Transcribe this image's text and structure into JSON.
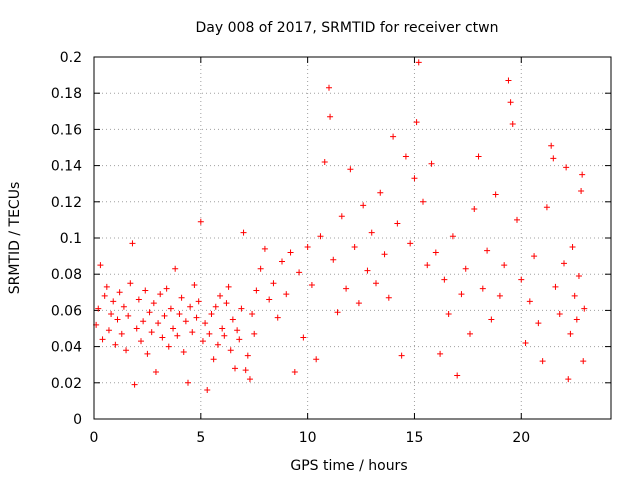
{
  "chart_data": {
    "type": "scatter",
    "title": "Day 008 of 2017, SRMTID for receiver ctwn",
    "xlabel": "GPS time / hours",
    "ylabel": "SRMTID / TECUs",
    "xlim": [
      0,
      24.2
    ],
    "ylim": [
      0,
      0.2
    ],
    "xticks": [
      0,
      5,
      10,
      15,
      20
    ],
    "yticks": [
      0,
      0.02,
      0.04,
      0.06,
      0.08,
      0.1,
      0.12,
      0.14,
      0.16,
      0.18,
      0.2
    ],
    "grid": true,
    "marker": "plus",
    "color": "#ff0000",
    "series": [
      {
        "name": "SRMTID",
        "points": [
          [
            0.1,
            0.052
          ],
          [
            0.2,
            0.061
          ],
          [
            0.3,
            0.085
          ],
          [
            0.4,
            0.044
          ],
          [
            0.5,
            0.068
          ],
          [
            0.6,
            0.073
          ],
          [
            0.7,
            0.049
          ],
          [
            0.8,
            0.058
          ],
          [
            0.9,
            0.065
          ],
          [
            1.0,
            0.041
          ],
          [
            1.1,
            0.055
          ],
          [
            1.2,
            0.07
          ],
          [
            1.3,
            0.047
          ],
          [
            1.4,
            0.062
          ],
          [
            1.5,
            0.038
          ],
          [
            1.6,
            0.057
          ],
          [
            1.7,
            0.075
          ],
          [
            1.8,
            0.097
          ],
          [
            1.9,
            0.019
          ],
          [
            2.0,
            0.05
          ],
          [
            2.1,
            0.066
          ],
          [
            2.2,
            0.043
          ],
          [
            2.3,
            0.054
          ],
          [
            2.4,
            0.071
          ],
          [
            2.5,
            0.036
          ],
          [
            2.6,
            0.059
          ],
          [
            2.7,
            0.048
          ],
          [
            2.8,
            0.064
          ],
          [
            2.9,
            0.026
          ],
          [
            3.0,
            0.053
          ],
          [
            3.1,
            0.069
          ],
          [
            3.2,
            0.045
          ],
          [
            3.3,
            0.057
          ],
          [
            3.4,
            0.072
          ],
          [
            3.5,
            0.04
          ],
          [
            3.6,
            0.061
          ],
          [
            3.7,
            0.05
          ],
          [
            3.8,
            0.083
          ],
          [
            3.9,
            0.046
          ],
          [
            4.0,
            0.058
          ],
          [
            4.1,
            0.067
          ],
          [
            4.2,
            0.037
          ],
          [
            4.3,
            0.054
          ],
          [
            4.4,
            0.02
          ],
          [
            4.5,
            0.062
          ],
          [
            4.6,
            0.048
          ],
          [
            4.7,
            0.074
          ],
          [
            4.8,
            0.056
          ],
          [
            4.9,
            0.065
          ],
          [
            5.0,
            0.109
          ],
          [
            5.1,
            0.043
          ],
          [
            5.2,
            0.053
          ],
          [
            5.3,
            0.016
          ],
          [
            5.4,
            0.047
          ],
          [
            5.5,
            0.058
          ],
          [
            5.6,
            0.033
          ],
          [
            5.7,
            0.062
          ],
          [
            5.8,
            0.041
          ],
          [
            5.9,
            0.068
          ],
          [
            6.0,
            0.05
          ],
          [
            6.1,
            0.046
          ],
          [
            6.2,
            0.064
          ],
          [
            6.3,
            0.073
          ],
          [
            6.4,
            0.038
          ],
          [
            6.5,
            0.055
          ],
          [
            6.6,
            0.028
          ],
          [
            6.7,
            0.049
          ],
          [
            6.8,
            0.044
          ],
          [
            6.9,
            0.061
          ],
          [
            7.0,
            0.103
          ],
          [
            7.1,
            0.027
          ],
          [
            7.2,
            0.035
          ],
          [
            7.3,
            0.022
          ],
          [
            7.4,
            0.058
          ],
          [
            7.5,
            0.047
          ],
          [
            7.6,
            0.071
          ],
          [
            7.8,
            0.083
          ],
          [
            8.0,
            0.094
          ],
          [
            8.2,
            0.066
          ],
          [
            8.4,
            0.075
          ],
          [
            8.6,
            0.056
          ],
          [
            8.8,
            0.087
          ],
          [
            9.0,
            0.069
          ],
          [
            9.2,
            0.092
          ],
          [
            9.4,
            0.026
          ],
          [
            9.6,
            0.081
          ],
          [
            9.8,
            0.045
          ],
          [
            10.0,
            0.095
          ],
          [
            10.2,
            0.074
          ],
          [
            10.4,
            0.033
          ],
          [
            10.6,
            0.101
          ],
          [
            10.8,
            0.142
          ],
          [
            11.0,
            0.183
          ],
          [
            11.05,
            0.167
          ],
          [
            11.2,
            0.088
          ],
          [
            11.4,
            0.059
          ],
          [
            11.6,
            0.112
          ],
          [
            11.8,
            0.072
          ],
          [
            12.0,
            0.138
          ],
          [
            12.2,
            0.095
          ],
          [
            12.4,
            0.064
          ],
          [
            12.6,
            0.118
          ],
          [
            12.8,
            0.082
          ],
          [
            13.0,
            0.103
          ],
          [
            13.2,
            0.075
          ],
          [
            13.4,
            0.125
          ],
          [
            13.6,
            0.091
          ],
          [
            13.8,
            0.067
          ],
          [
            14.0,
            0.156
          ],
          [
            14.2,
            0.108
          ],
          [
            14.4,
            0.035
          ],
          [
            14.6,
            0.145
          ],
          [
            14.8,
            0.097
          ],
          [
            15.0,
            0.133
          ],
          [
            15.1,
            0.164
          ],
          [
            15.2,
            0.197
          ],
          [
            15.4,
            0.12
          ],
          [
            15.6,
            0.085
          ],
          [
            15.8,
            0.141
          ],
          [
            16.0,
            0.092
          ],
          [
            16.2,
            0.036
          ],
          [
            16.4,
            0.077
          ],
          [
            16.6,
            0.058
          ],
          [
            16.8,
            0.101
          ],
          [
            17.0,
            0.024
          ],
          [
            17.2,
            0.069
          ],
          [
            17.4,
            0.083
          ],
          [
            17.6,
            0.047
          ],
          [
            17.8,
            0.116
          ],
          [
            18.0,
            0.145
          ],
          [
            18.2,
            0.072
          ],
          [
            18.4,
            0.093
          ],
          [
            18.6,
            0.055
          ],
          [
            18.8,
            0.124
          ],
          [
            19.0,
            0.068
          ],
          [
            19.2,
            0.085
          ],
          [
            19.4,
            0.187
          ],
          [
            19.5,
            0.175
          ],
          [
            19.6,
            0.163
          ],
          [
            19.8,
            0.11
          ],
          [
            20.0,
            0.077
          ],
          [
            20.2,
            0.042
          ],
          [
            20.4,
            0.065
          ],
          [
            20.6,
            0.09
          ],
          [
            20.8,
            0.053
          ],
          [
            21.0,
            0.032
          ],
          [
            21.2,
            0.117
          ],
          [
            21.4,
            0.151
          ],
          [
            21.5,
            0.144
          ],
          [
            21.6,
            0.073
          ],
          [
            21.8,
            0.058
          ],
          [
            22.0,
            0.086
          ],
          [
            22.1,
            0.139
          ],
          [
            22.2,
            0.022
          ],
          [
            22.3,
            0.047
          ],
          [
            22.4,
            0.095
          ],
          [
            22.5,
            0.068
          ],
          [
            22.6,
            0.055
          ],
          [
            22.7,
            0.079
          ],
          [
            22.8,
            0.126
          ],
          [
            22.85,
            0.135
          ],
          [
            22.9,
            0.032
          ],
          [
            22.95,
            0.061
          ]
        ]
      }
    ]
  }
}
